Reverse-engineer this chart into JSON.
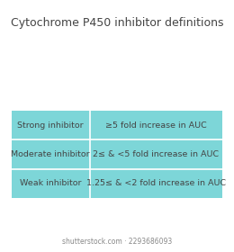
{
  "title": "Cytochrome P450 inhibitor definitions",
  "title_fontsize": 9.0,
  "title_color": "#444444",
  "background_color": "#ffffff",
  "table_bg_color": "#7dd6d8",
  "divider_color": "#ffffff",
  "rows": [
    {
      "label": "Strong inhibitor",
      "definition": "≥5 fold increase in AUC"
    },
    {
      "label": "Moderate inhibitor",
      "definition": "2≤ & <5 fold increase in AUC"
    },
    {
      "label": "Weak inhibitor",
      "definition": "1.25≤ & <2 fold increase in AUC"
    }
  ],
  "text_color": "#444444",
  "label_fontsize": 6.8,
  "def_fontsize": 6.8,
  "watermark": "shutterstock.com · 2293686093",
  "watermark_fontsize": 5.5,
  "watermark_color": "#888888"
}
